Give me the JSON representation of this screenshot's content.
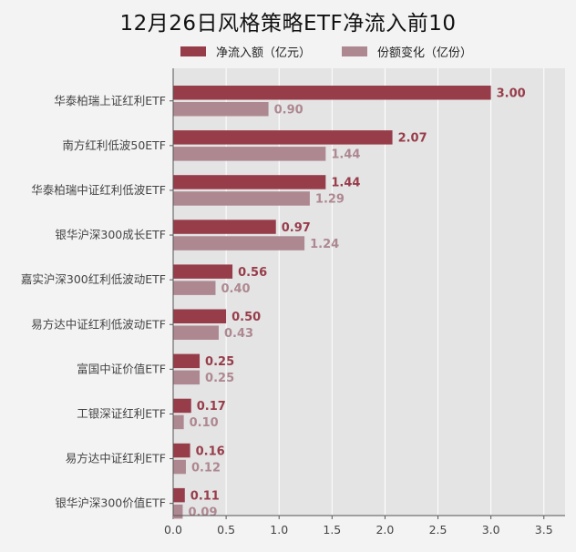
{
  "chart_data": {
    "type": "bar",
    "orientation": "horizontal",
    "title": "12月26日风格策略ETF净流入前10",
    "categories": [
      "华泰柏瑞上证红利ETF",
      "南方红利低波50ETF",
      "华泰柏瑞中证红利低波ETF",
      "银华沪深300成长ETF",
      "嘉实沪深300红利低波动ETF",
      "易方达中证红利低波动ETF",
      "富国中证价值ETF",
      "工银深证红利ETF",
      "易方达中证红利ETF",
      "银华沪深300价值ETF"
    ],
    "series": [
      {
        "name": "净流入额（亿元）",
        "color": "#973d4a",
        "values": [
          3.0,
          2.07,
          1.44,
          0.97,
          0.56,
          0.5,
          0.25,
          0.17,
          0.16,
          0.11
        ],
        "labels": [
          "3.00",
          "2.07",
          "1.44",
          "0.97",
          "0.56",
          "0.50",
          "0.25",
          "0.17",
          "0.16",
          "0.11"
        ]
      },
      {
        "name": "份额变化（亿份）",
        "color": "#ae8891",
        "values": [
          0.9,
          1.44,
          1.29,
          1.24,
          0.4,
          0.43,
          0.25,
          0.1,
          0.12,
          0.09
        ],
        "labels": [
          "0.90",
          "1.44",
          "1.29",
          "1.24",
          "0.40",
          "0.43",
          "0.25",
          "0.10",
          "0.12",
          "0.09"
        ]
      }
    ],
    "xlim": [
      0,
      3.7
    ],
    "xticks": [
      "0.0",
      "0.5",
      "1.0",
      "1.5",
      "2.0",
      "2.5",
      "3.0",
      "3.5"
    ],
    "grid": true,
    "legend_position": "top"
  }
}
